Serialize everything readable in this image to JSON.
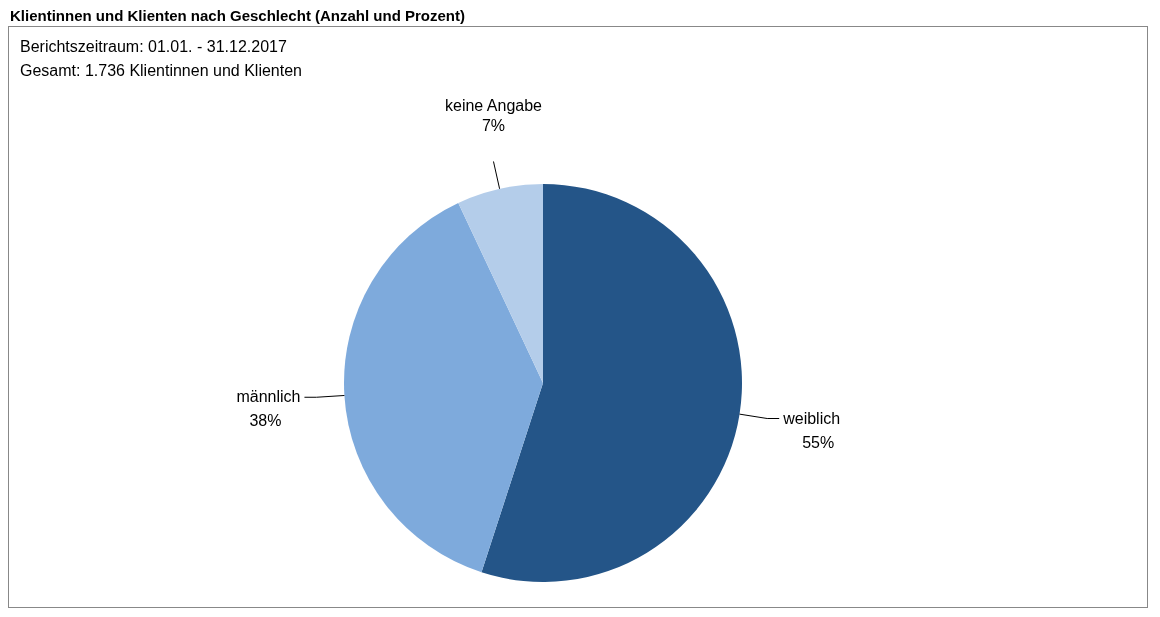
{
  "chart_data": {
    "type": "pie",
    "title": "Klientinnen und Klienten nach Geschlecht (Anzahl und Prozent)",
    "subtitle": "Berichtszeitraum: 01.01. - 31.12.2017",
    "annotations": [
      "Gesamt: 1.736 Klientinnen und Klienten"
    ],
    "categories": [
      "weiblich",
      "männlich",
      "keine Angabe"
    ],
    "values": [
      55,
      38,
      7
    ],
    "value_labels": [
      "55%",
      "38%",
      "7%"
    ],
    "colors": [
      "#245588",
      "#7eaadc",
      "#b4cdea"
    ]
  }
}
